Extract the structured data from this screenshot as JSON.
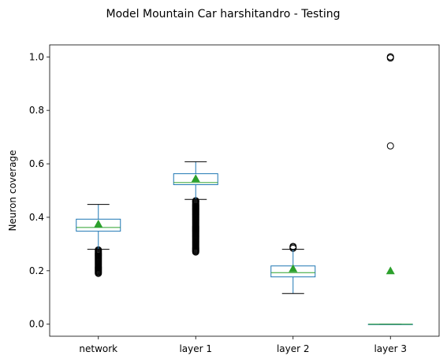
{
  "chart_data": {
    "type": "boxplot",
    "title": "Model Mountain Car harshitandro - Testing",
    "xlabel": "",
    "ylabel": "Neuron coverage",
    "ylim": [
      -0.045,
      1.045
    ],
    "yticks": [
      "0.0",
      "0.2",
      "0.4",
      "0.6",
      "0.8",
      "1.0"
    ],
    "grid": false,
    "categories": [
      "network",
      "layer 1",
      "layer 2",
      "layer 3"
    ],
    "boxes": [
      {
        "name": "network",
        "q1": 0.348,
        "median": 0.362,
        "q3": 0.393,
        "whisker_low": 0.28,
        "whisker_high": 0.448,
        "mean": 0.375,
        "outliers_range": [
          0.19,
          0.278
        ]
      },
      {
        "name": "layer 1",
        "q1": 0.522,
        "median": 0.53,
        "q3": 0.563,
        "whisker_low": 0.467,
        "whisker_high": 0.608,
        "mean": 0.545,
        "outliers_range": [
          0.27,
          0.462
        ]
      },
      {
        "name": "layer 2",
        "q1": 0.177,
        "median": 0.193,
        "q3": 0.218,
        "whisker_low": 0.115,
        "whisker_high": 0.28,
        "mean": 0.208,
        "outliers": [
          0.284,
          0.288,
          0.291
        ]
      },
      {
        "name": "layer 3",
        "q1": 0.0,
        "median": 0.0,
        "q3": 0.0,
        "whisker_low": 0.0,
        "whisker_high": 0.0,
        "mean": 0.2,
        "outliers": [
          0.667,
          0.996,
          1.0,
          1.0
        ]
      }
    ],
    "colors": {
      "box": "#1f77b4",
      "median": "#2ca02c",
      "mean": "#2ca02c",
      "whisker": "#000000",
      "outlier": "#000000"
    }
  }
}
